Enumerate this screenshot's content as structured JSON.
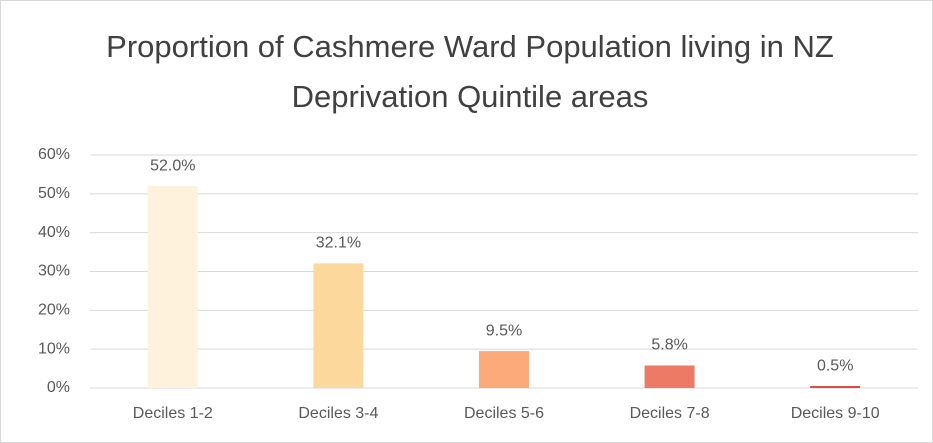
{
  "chart_data": {
    "type": "bar",
    "title": "Proportion of Cashmere Ward Population living in NZ Deprivation Quintile areas",
    "categories": [
      "Deciles 1-2",
      "Deciles 3-4",
      "Deciles 5-6",
      "Deciles 7-8",
      "Deciles 9-10"
    ],
    "values": [
      52.0,
      32.1,
      9.5,
      5.8,
      0.5
    ],
    "value_labels": [
      "52.0%",
      "32.1%",
      "9.5%",
      "5.8%",
      "0.5%"
    ],
    "colors": [
      "#fef2dc",
      "#fdd89c",
      "#fdaa7a",
      "#ec7a64",
      "#d9473b"
    ],
    "ylim": [
      0,
      60
    ],
    "yticks": [
      {
        "value": 0,
        "label": "0%"
      },
      {
        "value": 10,
        "label": "10%"
      },
      {
        "value": 20,
        "label": "20%"
      },
      {
        "value": 30,
        "label": "30%"
      },
      {
        "value": 40,
        "label": "40%"
      },
      {
        "value": 50,
        "label": "50%"
      },
      {
        "value": 60,
        "label": "60%"
      }
    ],
    "grid": true
  }
}
